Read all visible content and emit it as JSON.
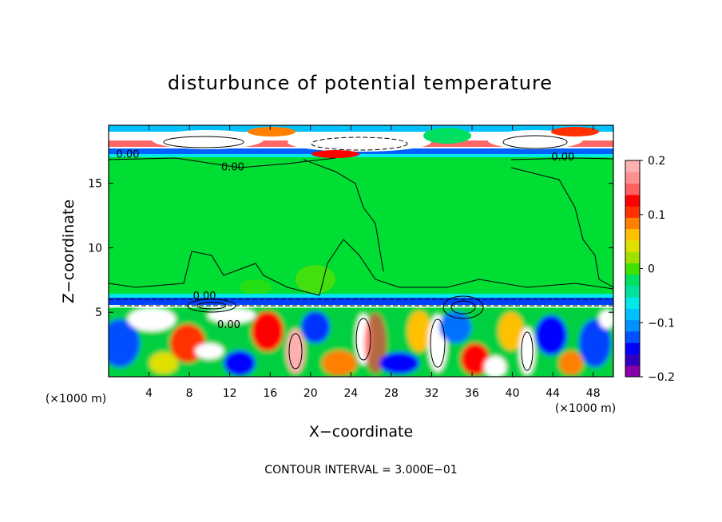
{
  "chart_data": {
    "type": "heatmap",
    "title": "disturbunce of potential temperature",
    "xlabel": "X−coordinate",
    "ylabel": "Z−coordinate",
    "x_unit": "(×1000 m)",
    "y_unit": "(×1000 m)",
    "footer": "CONTOUR INTERVAL = 3.000E−01",
    "xlim": [
      0,
      50
    ],
    "ylim": [
      0,
      19.5
    ],
    "x_ticks": [
      4,
      8,
      12,
      16,
      20,
      24,
      28,
      32,
      36,
      40,
      44,
      48
    ],
    "y_ticks": [
      5,
      10,
      15
    ],
    "colorbar": {
      "range": [
        -0.2,
        0.2
      ],
      "ticks": [
        0.2,
        0.1,
        0,
        -0.1,
        -0.2
      ],
      "tick_labels": [
        "0.2",
        "0.1",
        "0",
        "−0.1",
        "−0.2"
      ],
      "colors": [
        "#8a00a8",
        "#3000c0",
        "#0000ff",
        "#0050ff",
        "#0090ff",
        "#00c0ff",
        "#00e8e8",
        "#00e0a0",
        "#00e060",
        "#40e000",
        "#a0e000",
        "#e0e000",
        "#ffc000",
        "#ff8000",
        "#ff3000",
        "#ff0000",
        "#ff6060",
        "#ff9090",
        "#ffb0b0"
      ]
    },
    "contour_labels": [
      {
        "text": "0.00",
        "x": 1.9,
        "z": 17.3
      },
      {
        "text": "0.00",
        "x": 12.3,
        "z": 16.3
      },
      {
        "text": "0.00",
        "x": 45.0,
        "z": 17.1
      },
      {
        "text": "0.00",
        "x": 9.5,
        "z": 6.3
      },
      {
        "text": "0.00",
        "x": 11.9,
        "z": 4.1
      }
    ],
    "grid": false
  }
}
